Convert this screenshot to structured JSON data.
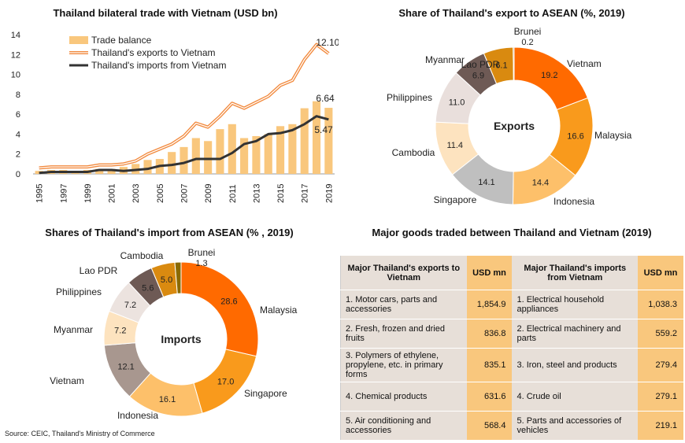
{
  "source": "Source: CEIC, Thailand's Ministry of Commerce",
  "colors": {
    "bar": "#f9c77d",
    "exports_line": "#f28a3e",
    "imports_line": "#333333"
  },
  "chart_data": [
    {
      "type": "bar",
      "title": "Thailand bilateral trade with Vietnam (USD bn)",
      "categories": [
        "1995",
        "1996",
        "1997",
        "1998",
        "1999",
        "2000",
        "2001",
        "2002",
        "2003",
        "2004",
        "2005",
        "2006",
        "2007",
        "2008",
        "2009",
        "2010",
        "2011",
        "2012",
        "2013",
        "2014",
        "2015",
        "2016",
        "2017",
        "2018",
        "2019"
      ],
      "xtick_labels": [
        "1995",
        "1997",
        "1999",
        "2001",
        "2003",
        "2005",
        "2007",
        "2009",
        "2011",
        "2013",
        "2015",
        "2017",
        "2019"
      ],
      "yticks": [
        "0",
        "2",
        "4",
        "6",
        "8",
        "10",
        "12",
        "14"
      ],
      "ylim": [
        0,
        14
      ],
      "legend_position": "top-left",
      "series": [
        {
          "name": "Trade balance",
          "type": "bar",
          "values": [
            0.3,
            0.4,
            0.4,
            0.3,
            0.4,
            0.5,
            0.5,
            0.7,
            1.0,
            1.4,
            1.5,
            2.2,
            2.7,
            3.6,
            3.3,
            4.5,
            5.0,
            3.6,
            3.8,
            4.0,
            4.8,
            5.0,
            6.6,
            7.3,
            6.64
          ]
        },
        {
          "name": "Thailand's exports to Vietnam",
          "type": "line",
          "values": [
            0.6,
            0.7,
            0.7,
            0.7,
            0.7,
            0.9,
            0.9,
            1.0,
            1.3,
            2.0,
            2.5,
            3.0,
            3.8,
            5.1,
            4.7,
            5.8,
            7.1,
            6.6,
            7.2,
            7.8,
            8.9,
            9.4,
            11.5,
            13.0,
            12.1
          ]
        },
        {
          "name": "Thailand's imports from Vietnam",
          "type": "line",
          "values": [
            0.1,
            0.2,
            0.2,
            0.2,
            0.2,
            0.4,
            0.4,
            0.3,
            0.4,
            0.5,
            0.8,
            0.9,
            1.1,
            1.5,
            1.5,
            1.5,
            2.1,
            3.0,
            3.3,
            4.0,
            4.1,
            4.4,
            5.0,
            5.8,
            5.47
          ]
        }
      ],
      "annotations": [
        "12.10",
        "6.64",
        "5.47"
      ]
    },
    {
      "type": "pie",
      "title": "Share of Thailand's export to ASEAN  (%, 2019)",
      "center_label": "Exports",
      "slices": [
        {
          "name": "Vietnam",
          "value": 19.2,
          "label": "19.2",
          "color": "#ff6a00"
        },
        {
          "name": "Malaysia",
          "value": 16.6,
          "label": "16.6",
          "color": "#f99a1c"
        },
        {
          "name": "Indonesia",
          "value": 14.4,
          "label": "14.4",
          "color": "#fdc06a"
        },
        {
          "name": "Singapore",
          "value": 14.1,
          "label": "14.1",
          "color": "#bfbfbf"
        },
        {
          "name": "Cambodia",
          "value": 11.4,
          "label": "11.4",
          "color": "#fde3bf"
        },
        {
          "name": "Philippines",
          "value": 11.0,
          "label": "11.0",
          "color": "#e9dfdc"
        },
        {
          "name": "Myanmar",
          "value": 6.9,
          "label": "6.9",
          "color": "#6e5a55"
        },
        {
          "name": "Lao PDR",
          "value": 6.1,
          "label": "6.1",
          "color": "#d98a10"
        },
        {
          "name": "Brunei",
          "value": 0.2,
          "label": "0.2",
          "color": "#8a5a00"
        }
      ]
    },
    {
      "type": "pie",
      "title": "Shares of Thailand's import from ASEAN (% , 2019)",
      "center_label": "Imports",
      "slices": [
        {
          "name": "Malaysia",
          "value": 28.6,
          "label": "28.6",
          "color": "#ff6a00"
        },
        {
          "name": "Singapore",
          "value": 17.0,
          "label": "17.0",
          "color": "#f99a1c"
        },
        {
          "name": "Indonesia",
          "value": 16.1,
          "label": "16.1",
          "color": "#fdc06a"
        },
        {
          "name": "Vietnam",
          "value": 12.1,
          "label": "12.1",
          "color": "#a8978f"
        },
        {
          "name": "Myanmar",
          "value": 7.2,
          "label": "7.2",
          "color": "#fde3bf"
        },
        {
          "name": "Philippines",
          "value": 7.2,
          "label": "7.2",
          "color": "#ece3df"
        },
        {
          "name": "Lao PDR",
          "value": 5.6,
          "label": "5.6",
          "color": "#6e5a55"
        },
        {
          "name": "Cambodia",
          "value": 5.0,
          "label": "5.0",
          "color": "#d98a10"
        },
        {
          "name": "Brunei",
          "value": 1.3,
          "label": "1.3",
          "color": "#8a6a00"
        }
      ]
    },
    {
      "type": "table",
      "title": "Major goods traded between Thailand and Vietnam (2019)",
      "headers": [
        "Major Thailand's exports to Vietnam",
        "USD mn",
        "Major Thailand's imports from Vietnam",
        "USD mn"
      ],
      "rows": [
        [
          "1. Motor cars, parts and accessories",
          "1,854.9",
          "1. Electrical household appliances",
          "1,038.3"
        ],
        [
          "2. Fresh, frozen and dried fruits",
          "836.8",
          "2. Electrical machinery and parts",
          "559.2"
        ],
        [
          "3. Polymers of ethylene, propylene, etc. in primary forms",
          "835.1",
          "3. Iron, steel and products",
          "279.4"
        ],
        [
          "4. Chemical products",
          "631.6",
          "4. Crude oil",
          "279.1"
        ],
        [
          "5. Air conditioning and accessories",
          "568.4",
          "5. Parts and accessories of vehicles",
          "219.1"
        ]
      ]
    }
  ]
}
